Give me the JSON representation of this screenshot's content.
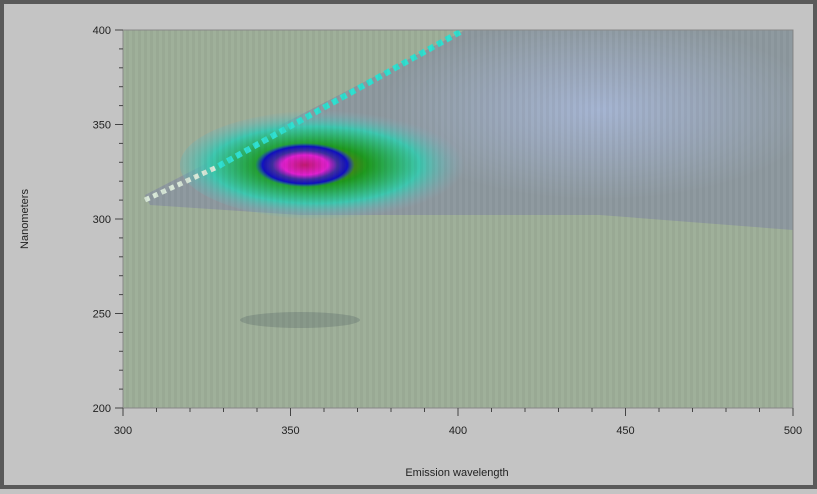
{
  "chart_data": {
    "type": "heatmap",
    "xlabel": "Emission wavelength",
    "ylabel": "Nanometers",
    "xlim": [
      300,
      500
    ],
    "xticks": [
      300,
      350,
      400,
      450,
      500
    ],
    "xminorticks": [
      310,
      320,
      330,
      340,
      360,
      370,
      380,
      390,
      410,
      420,
      430,
      440,
      460,
      470,
      480,
      490
    ],
    "ylim": [
      200,
      400
    ],
    "yticks": [
      200,
      250,
      300,
      350,
      400
    ],
    "yminorticks": [
      210,
      220,
      230,
      240,
      260,
      270,
      280,
      290,
      310,
      320,
      330,
      340,
      360,
      370,
      380,
      390
    ]
  }
}
